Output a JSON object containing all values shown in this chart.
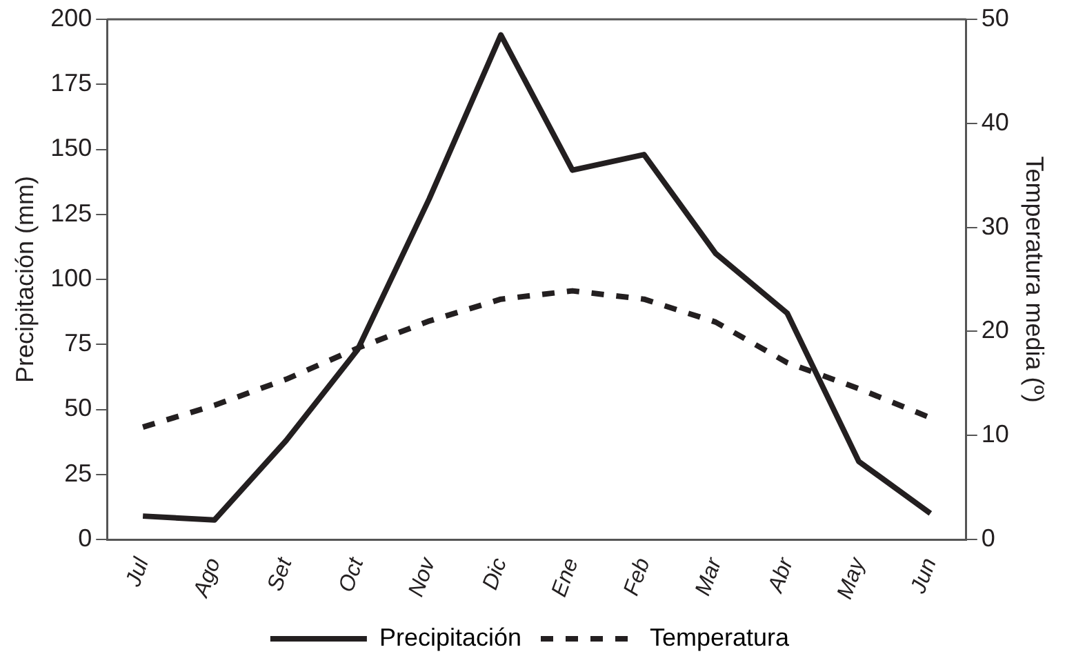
{
  "chart_data": {
    "type": "line",
    "categories": [
      "Jul",
      "Ago",
      "Set",
      "Oct",
      "Nov",
      "Dic",
      "Ene",
      "Feb",
      "Mar",
      "Abr",
      "May",
      "Jun"
    ],
    "series": [
      {
        "name": "Precipitación",
        "color": "#231f20",
        "line_style": "solid",
        "values": [
          9,
          7.5,
          38,
          73,
          131,
          194,
          142,
          148,
          110,
          87,
          30,
          10
        ]
      },
      {
        "name": "Temperatura",
        "color": "#231f20",
        "line_style": "dashed",
        "axis": "y2",
        "values": [
          10.8,
          12.9,
          15.4,
          18.4,
          21,
          23.1,
          23.9,
          23.1,
          20.9,
          17,
          14.5,
          11.7
        ]
      }
    ],
    "ylabel": "Precipitación (mm)",
    "y2label": "Temperatura media (º)",
    "ylim": [
      0,
      200
    ],
    "yticks": [
      0,
      25,
      50,
      75,
      100,
      125,
      150,
      175,
      200
    ],
    "y2lim": [
      0,
      50
    ],
    "y2ticks": [
      0,
      10,
      20,
      30,
      40,
      50
    ],
    "grid": false,
    "legend": "bottom",
    "marker": "none"
  }
}
